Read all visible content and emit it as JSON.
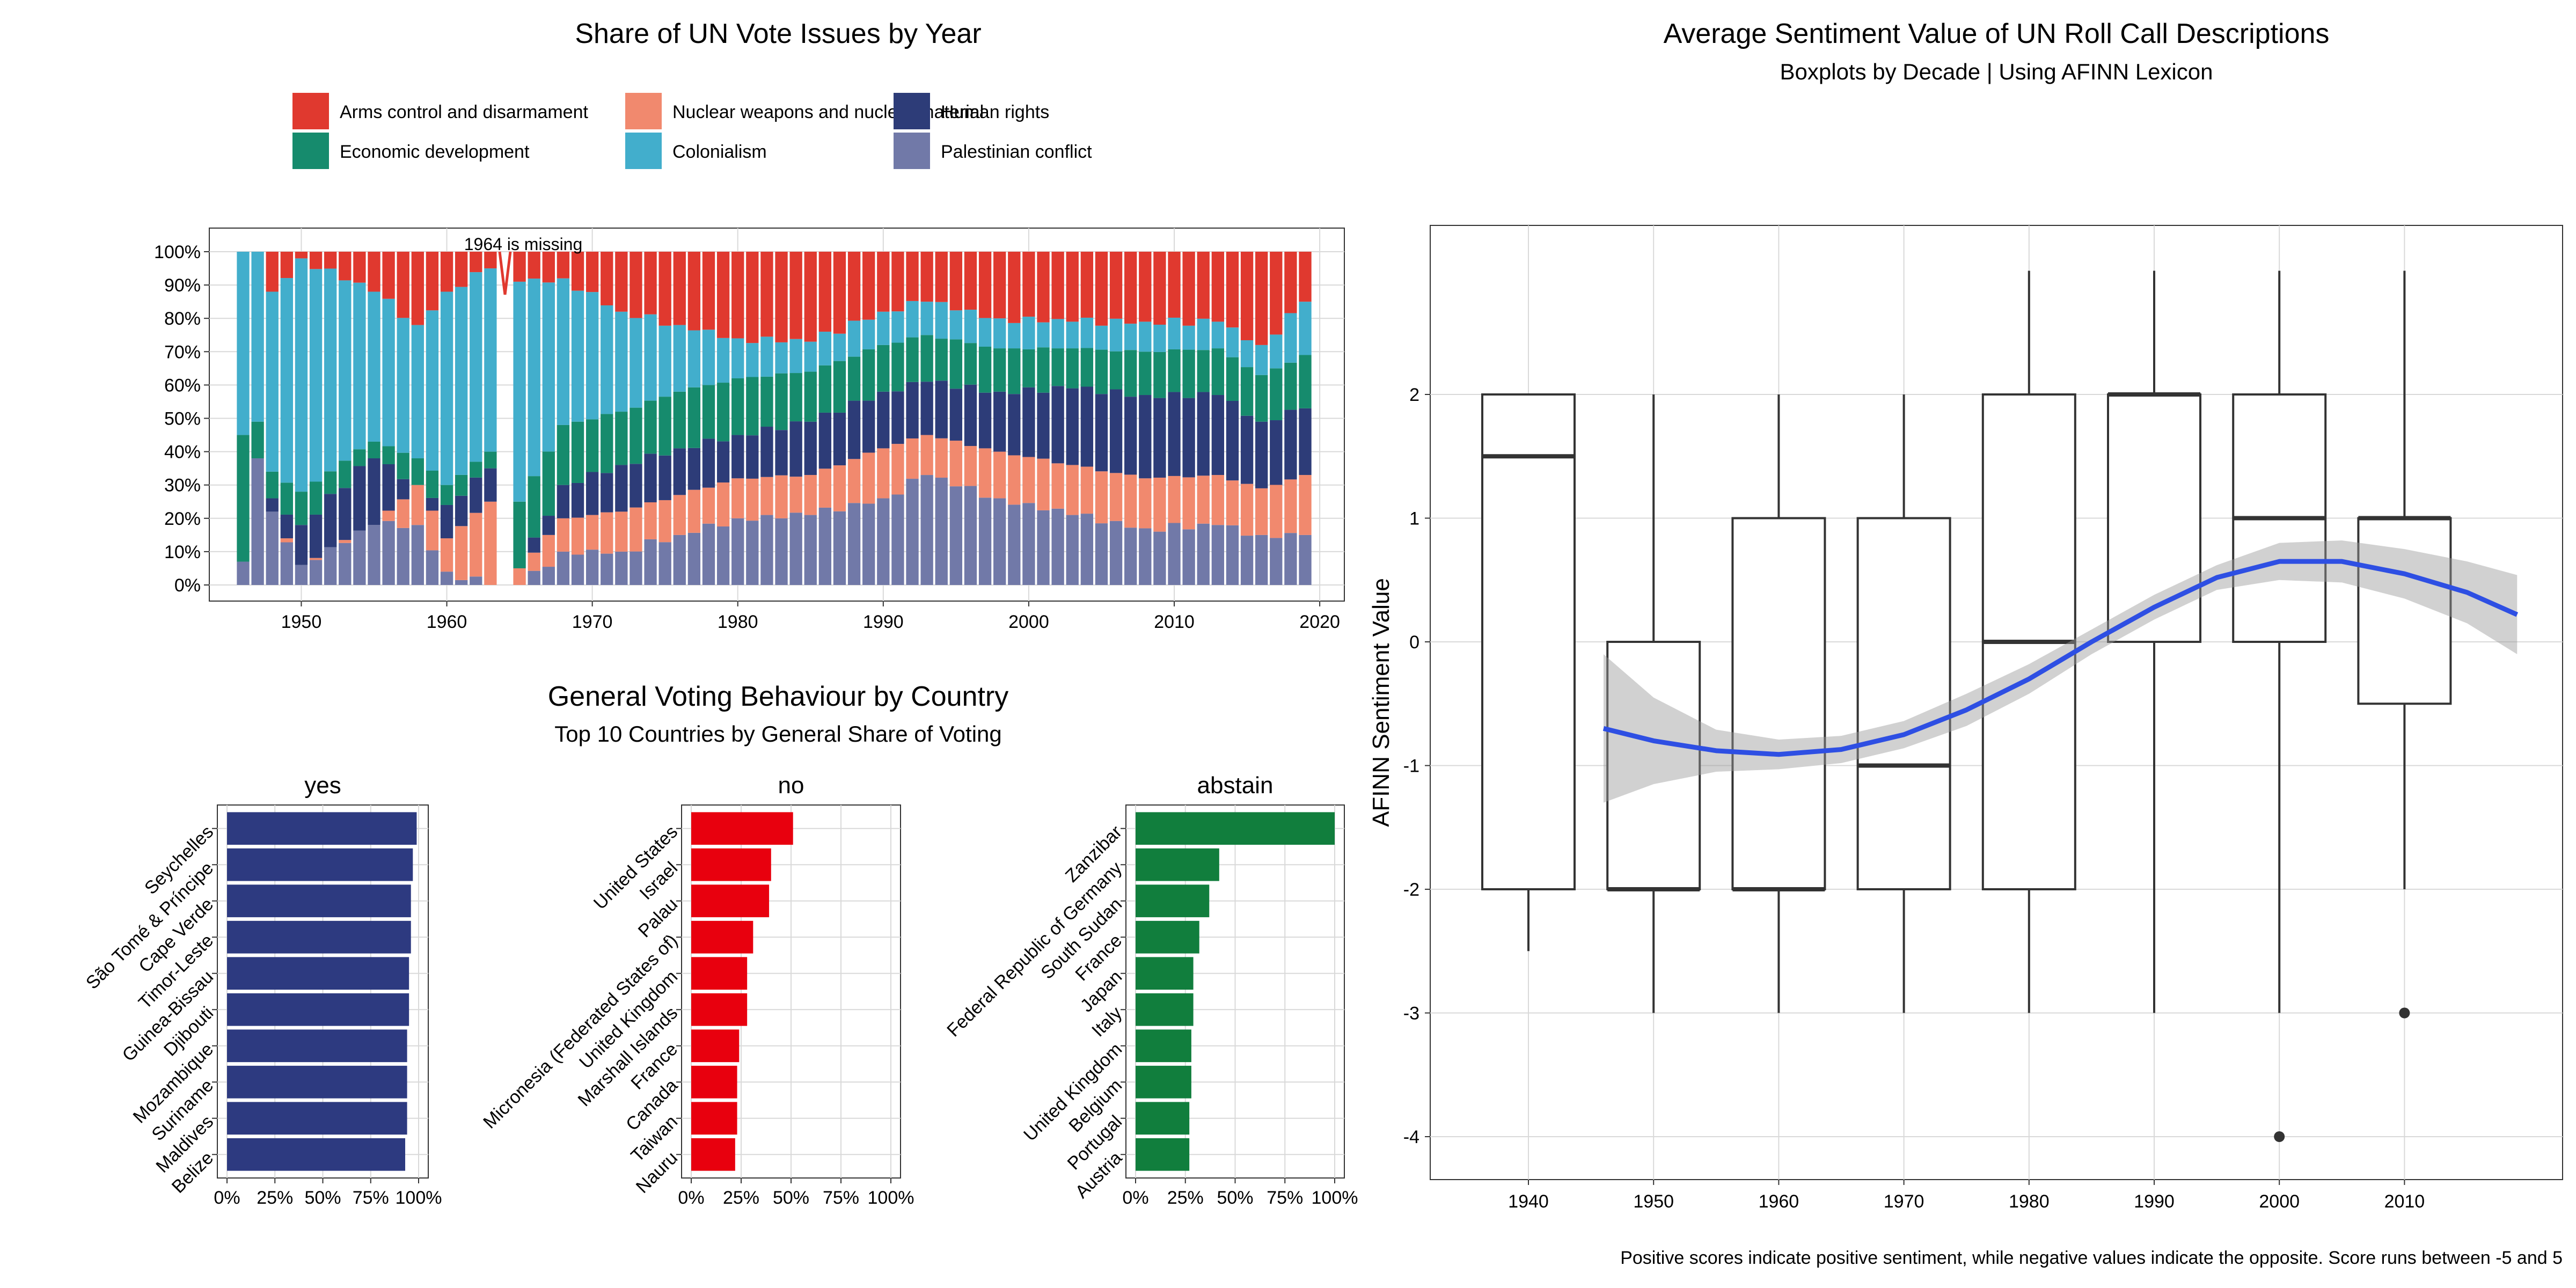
{
  "left_top": {
    "title": "Share of UN Vote Issues by Year",
    "annotation": "1964 is missing",
    "legend": [
      {
        "label": "Arms control and disarmament",
        "color": "#E0392F"
      },
      {
        "label": "Economic development",
        "color": "#168B6D"
      },
      {
        "label": "Nuclear weapons and nuclear material",
        "color": "#F1896E"
      },
      {
        "label": "Colonialism",
        "color": "#42AECC"
      },
      {
        "label": "Human rights",
        "color": "#2D3C78"
      },
      {
        "label": "Palestinian conflict",
        "color": "#7179A8"
      }
    ]
  },
  "left_bottom": {
    "title": "General Voting Behaviour by Country",
    "subtitle": "Top 10 Countries by General Share of Voting"
  },
  "right": {
    "title": "Average Sentiment Value of UN Roll Call Descriptions",
    "subtitle": "Boxplots by Decade | Using AFINN Lexicon",
    "caption": "Positive scores indicate positive sentiment, while negative values indicate the opposite. Score runs between -5 and 5"
  },
  "chart_data": [
    {
      "type": "bar",
      "stacked": true,
      "title": "Share of UN Vote Issues by Year",
      "annotation": "1964 is missing",
      "x_ticks": [
        1950,
        1960,
        1970,
        1980,
        1990,
        2000,
        2010,
        2020
      ],
      "y_ticks": [
        "0%",
        "10%",
        "20%",
        "30%",
        "40%",
        "50%",
        "60%",
        "70%",
        "80%",
        "90%",
        "100%"
      ],
      "xlim": [
        1944,
        2021
      ],
      "ylim": [
        0,
        1
      ],
      "years_from": 1946,
      "years_to": 2019,
      "missing_years": [
        1964
      ],
      "series_order": [
        "Palestinian conflict",
        "Nuclear weapons and nuclear material",
        "Human rights",
        "Economic development",
        "Colonialism",
        "Arms control and disarmament"
      ],
      "anchor_shares": {
        "1946": [
          0.07,
          0.0,
          0.0,
          0.38,
          0.55,
          0.0
        ],
        "1947": [
          0.38,
          0.0,
          0.0,
          0.11,
          0.51,
          0.0
        ],
        "1948": [
          0.22,
          0.0,
          0.04,
          0.08,
          0.54,
          0.12
        ],
        "1950": [
          0.06,
          0.0,
          0.12,
          0.1,
          0.7,
          0.02
        ],
        "1955": [
          0.18,
          0.0,
          0.2,
          0.05,
          0.45,
          0.12
        ],
        "1958": [
          0.18,
          0.12,
          0.0,
          0.08,
          0.4,
          0.22
        ],
        "1960": [
          0.04,
          0.1,
          0.1,
          0.06,
          0.58,
          0.12
        ],
        "1963": [
          0.0,
          0.25,
          0.1,
          0.05,
          0.55,
          0.05
        ],
        "1965": [
          0.0,
          0.05,
          0.0,
          0.2,
          0.66,
          0.09
        ],
        "1968": [
          0.1,
          0.1,
          0.1,
          0.18,
          0.44,
          0.08
        ],
        "1972": [
          0.1,
          0.12,
          0.14,
          0.16,
          0.3,
          0.18
        ],
        "1976": [
          0.15,
          0.12,
          0.14,
          0.17,
          0.2,
          0.22
        ],
        "1980": [
          0.2,
          0.12,
          0.13,
          0.17,
          0.12,
          0.26
        ],
        "1985": [
          0.21,
          0.12,
          0.16,
          0.15,
          0.09,
          0.27
        ],
        "1990": [
          0.26,
          0.15,
          0.17,
          0.14,
          0.1,
          0.18
        ],
        "1993": [
          0.33,
          0.12,
          0.16,
          0.14,
          0.1,
          0.15
        ],
        "1998": [
          0.26,
          0.14,
          0.18,
          0.13,
          0.09,
          0.2
        ],
        "2003": [
          0.21,
          0.15,
          0.23,
          0.12,
          0.08,
          0.21
        ],
        "2008": [
          0.17,
          0.15,
          0.25,
          0.13,
          0.09,
          0.21
        ],
        "2013": [
          0.18,
          0.15,
          0.24,
          0.14,
          0.08,
          0.21
        ],
        "2016": [
          0.15,
          0.14,
          0.2,
          0.14,
          0.09,
          0.28
        ],
        "2019": [
          0.15,
          0.18,
          0.2,
          0.16,
          0.16,
          0.15
        ]
      }
    },
    {
      "type": "bar",
      "orientation": "horizontal",
      "title": "yes",
      "color": "#2D3A80",
      "categories": [
        "Seychelles",
        "São Tomé & Príncipe",
        "Cape Verde",
        "Timor-Leste",
        "Guinea-Bissau",
        "Djibouti",
        "Mozambique",
        "Suriname",
        "Maldives",
        "Belize"
      ],
      "values": [
        0.99,
        0.97,
        0.96,
        0.96,
        0.95,
        0.95,
        0.94,
        0.94,
        0.94,
        0.93
      ],
      "x_ticks": [
        "0%",
        "25%",
        "50%",
        "75%",
        "100%"
      ],
      "xlim": [
        0,
        1
      ]
    },
    {
      "type": "bar",
      "orientation": "horizontal",
      "title": "no",
      "color": "#E8000E",
      "categories": [
        "United States",
        "Israel",
        "Palau",
        "Micronesia (Federated States of)",
        "United Kingdom",
        "Marshall Islands",
        "France",
        "Canada",
        "Taiwan",
        "Nauru"
      ],
      "values": [
        0.51,
        0.4,
        0.39,
        0.31,
        0.28,
        0.28,
        0.24,
        0.23,
        0.23,
        0.22
      ],
      "x_ticks": [
        "0%",
        "25%",
        "50%",
        "75%",
        "100%"
      ],
      "xlim": [
        0,
        1
      ]
    },
    {
      "type": "bar",
      "orientation": "horizontal",
      "title": "abstain",
      "color": "#117E3D",
      "categories": [
        "Zanzibar",
        "Federal Republic of Germany",
        "South Sudan",
        "France",
        "Japan",
        "Italy",
        "United Kingdom",
        "Belgium",
        "Portugal",
        "Austria"
      ],
      "values": [
        1.0,
        0.42,
        0.37,
        0.32,
        0.29,
        0.29,
        0.28,
        0.28,
        0.27,
        0.27
      ],
      "x_ticks": [
        "0%",
        "25%",
        "50%",
        "75%",
        "100%"
      ],
      "xlim": [
        0,
        1
      ]
    },
    {
      "type": "box",
      "title": "Average Sentiment Value of UN Roll Call Descriptions",
      "subtitle": "Boxplots by Decade | Using AFINN Lexicon",
      "ylabel": "AFINN Sentiment Value",
      "caption": "Positive scores indicate positive sentiment, while negative values indicate the opposite. Score runs between -5 and 5",
      "x_ticks": [
        1940,
        1950,
        1960,
        1970,
        1980,
        1990,
        2000,
        2010
      ],
      "y_ticks": [
        -4,
        -3,
        -2,
        -1,
        0,
        1,
        2
      ],
      "xlim": [
        1932,
        2024
      ],
      "ylim": [
        -4.35,
        3.35
      ],
      "boxes": [
        {
          "decade": 1940,
          "min": -2.5,
          "q1": -2,
          "median": 1.5,
          "q3": 2,
          "max": 2,
          "outliers": []
        },
        {
          "decade": 1950,
          "min": -3,
          "q1": -2,
          "median": -2,
          "q3": 0,
          "max": 2,
          "outliers": []
        },
        {
          "decade": 1960,
          "min": -3,
          "q1": -2,
          "median": -2,
          "q3": 1,
          "max": 2,
          "outliers": []
        },
        {
          "decade": 1970,
          "min": -3,
          "q1": -2,
          "median": -1,
          "q3": 1,
          "max": 2,
          "outliers": []
        },
        {
          "decade": 1980,
          "min": -3,
          "q1": -2,
          "median": 0,
          "q3": 2,
          "max": 3,
          "outliers": []
        },
        {
          "decade": 1990,
          "min": -3,
          "q1": 0,
          "median": 2,
          "q3": 2,
          "max": 3,
          "outliers": []
        },
        {
          "decade": 2000,
          "min": -3,
          "q1": 0,
          "median": 1,
          "q3": 2,
          "max": 3,
          "outliers": [
            -4
          ]
        },
        {
          "decade": 2010,
          "min": -2,
          "q1": -0.5,
          "median": 1,
          "q3": 1,
          "max": 3,
          "outliers": [
            -3
          ]
        }
      ],
      "smooth": {
        "color": "#2E4FE3",
        "x": [
          1946,
          1950,
          1955,
          1960,
          1965,
          1970,
          1975,
          1980,
          1985,
          1990,
          1995,
          2000,
          2005,
          2010,
          2015,
          2019
        ],
        "y": [
          -0.7,
          -0.8,
          -0.88,
          -0.91,
          -0.87,
          -0.75,
          -0.55,
          -0.3,
          0.0,
          0.28,
          0.52,
          0.65,
          0.65,
          0.55,
          0.4,
          0.22
        ],
        "ci_low": [
          -1.3,
          -1.15,
          -1.05,
          -1.03,
          -0.98,
          -0.86,
          -0.68,
          -0.42,
          -0.1,
          0.18,
          0.42,
          0.5,
          0.48,
          0.35,
          0.15,
          -0.1
        ],
        "ci_high": [
          -0.1,
          -0.45,
          -0.71,
          -0.79,
          -0.76,
          -0.64,
          -0.42,
          -0.18,
          0.1,
          0.38,
          0.62,
          0.8,
          0.82,
          0.75,
          0.65,
          0.54
        ]
      }
    }
  ]
}
